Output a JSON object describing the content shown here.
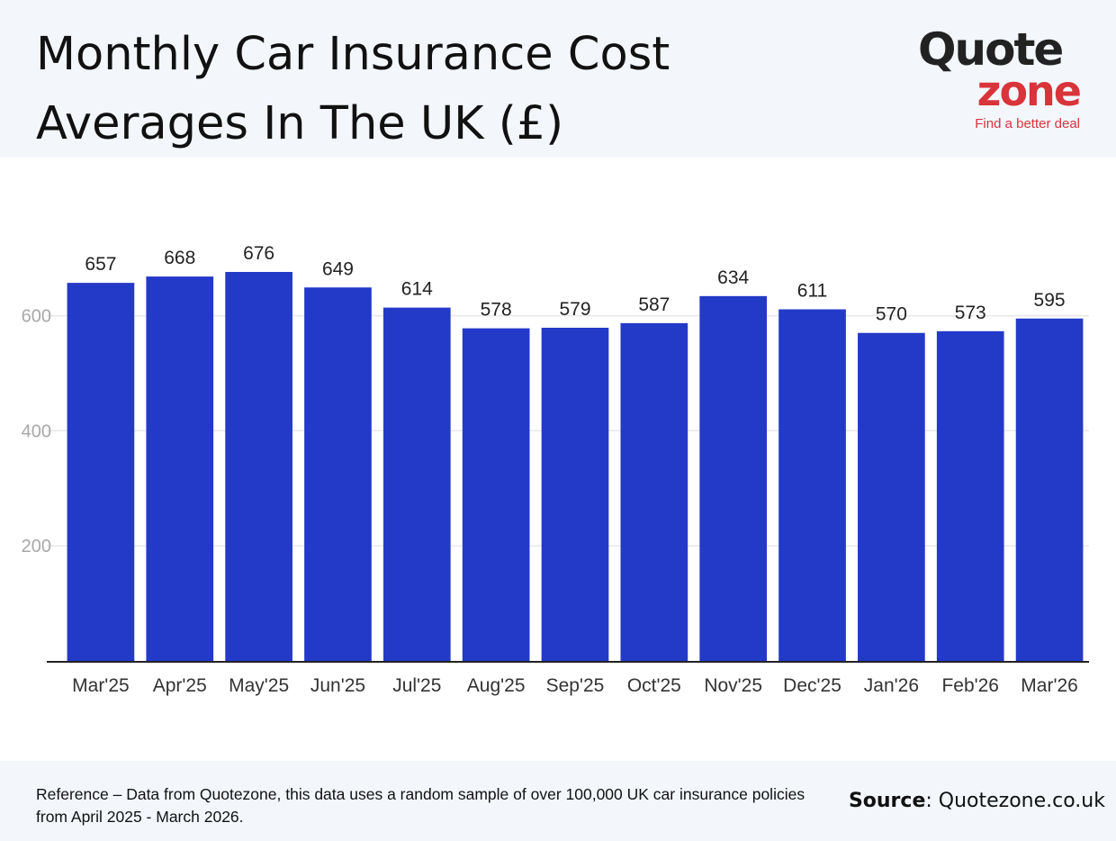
{
  "header": {
    "title_line1": "Monthly Car Insurance Cost",
    "title_line2": "Averages In The UK (£)"
  },
  "logo": {
    "word1": "Quote",
    "word2": "zone",
    "tagline": "Find a better deal",
    "brand_red": "#d8343a",
    "brand_dark": "#222222"
  },
  "chart_data": {
    "type": "bar",
    "categories": [
      "Mar'25",
      "Apr'25",
      "May'25",
      "Jun'25",
      "Jul'25",
      "Aug'25",
      "Sep'25",
      "Oct'25",
      "Nov'25",
      "Dec'25",
      "Jan'26",
      "Feb'26",
      "Mar'26"
    ],
    "values": [
      657,
      668,
      676,
      649,
      614,
      578,
      579,
      587,
      634,
      611,
      570,
      573,
      595
    ],
    "ylim": [
      0,
      676
    ],
    "yticks": [
      200,
      400,
      600
    ],
    "grid": true,
    "data_labels": true,
    "bar_color": "#2339c8"
  },
  "footer": {
    "reference": "Reference – Data from Quotezone, this data uses a random sample of over 100,000 UK car insurance policies from April 2025 - March 2026.",
    "source_label": "Source",
    "source_value": ": Quotezone.co.uk"
  }
}
